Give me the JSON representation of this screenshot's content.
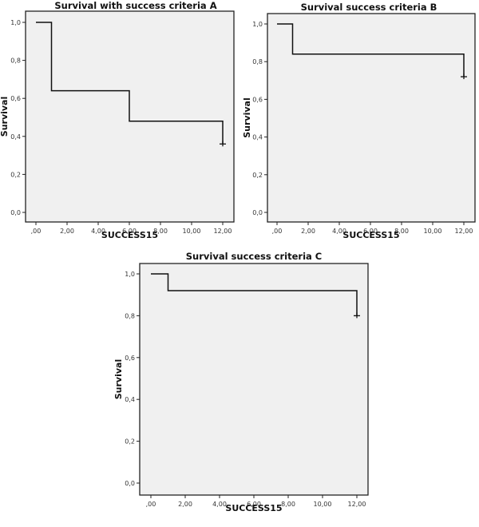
{
  "chart_data": [
    {
      "type": "line",
      "subtype": "kaplan-meier-step",
      "title": "Survival with success criteria A",
      "xlabel": "SUCCESS15",
      "ylabel": "Survival",
      "xticks": [
        ",00",
        "2,00",
        "4,00",
        "6,00",
        "8,00",
        "10,00",
        "12,00"
      ],
      "yticks": [
        "0,0",
        "0,2",
        "0,4",
        "0,6",
        "0,8",
        "1,0"
      ],
      "xlim": [
        0,
        12
      ],
      "ylim": [
        0,
        1
      ],
      "grid": false,
      "steps": [
        {
          "x": 0,
          "y": 1.0
        },
        {
          "x": 1,
          "y": 0.64
        },
        {
          "x": 6,
          "y": 0.48
        },
        {
          "x": 12,
          "y": 0.36
        }
      ],
      "censored": [
        {
          "x": 12,
          "y": 0.36
        }
      ]
    },
    {
      "type": "line",
      "subtype": "kaplan-meier-step",
      "title": "Survival success criteria B",
      "xlabel": "SUCCESS15",
      "ylabel": "Survival",
      "xticks": [
        ",00",
        "2,00",
        "4,00",
        "6,00",
        "8,00",
        "10,00",
        "12,00"
      ],
      "yticks": [
        "0,0",
        "0,2",
        "0,4",
        "0,6",
        "0,8",
        "1,0"
      ],
      "xlim": [
        0,
        12
      ],
      "ylim": [
        0,
        1
      ],
      "grid": false,
      "steps": [
        {
          "x": 0,
          "y": 1.0
        },
        {
          "x": 1,
          "y": 0.84
        },
        {
          "x": 12,
          "y": 0.72
        }
      ],
      "censored": [
        {
          "x": 12,
          "y": 0.72
        }
      ]
    },
    {
      "type": "line",
      "subtype": "kaplan-meier-step",
      "title": "Survival success criteria C",
      "xlabel": "SUCCESS15",
      "ylabel": "Survival",
      "xticks": [
        ",00",
        "2,00",
        "4,00",
        "6,00",
        "8,00",
        "10,00",
        "12,00"
      ],
      "yticks": [
        "0,0",
        "0,2",
        "0,4",
        "0,6",
        "0,8",
        "1,0"
      ],
      "xlim": [
        0,
        12
      ],
      "ylim": [
        0,
        1
      ],
      "grid": false,
      "steps": [
        {
          "x": 0,
          "y": 1.0
        },
        {
          "x": 1,
          "y": 0.92
        },
        {
          "x": 12,
          "y": 0.8
        }
      ],
      "censored": [
        {
          "x": 12,
          "y": 0.8
        }
      ]
    }
  ],
  "colors": {
    "plot_background": "#f0f0f0",
    "frame": "#222222",
    "line": "#111111"
  }
}
